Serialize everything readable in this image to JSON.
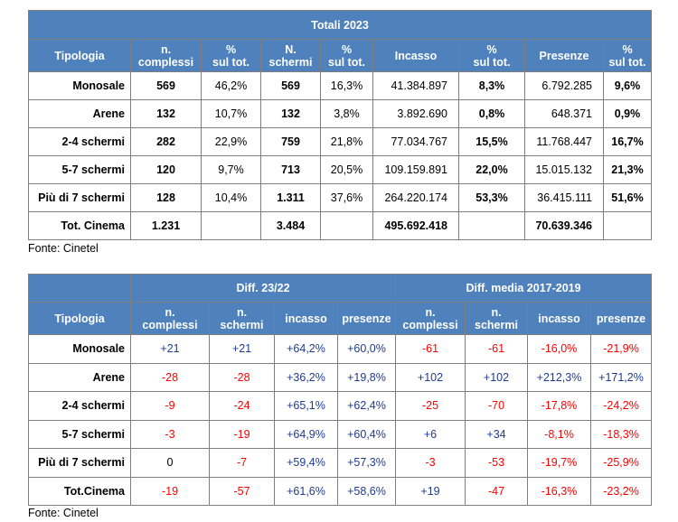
{
  "table1": {
    "title": "Totali 2023",
    "headers": [
      "Tipologia",
      "n.\ncomplessi",
      "%\nsul tot.",
      "N.\nschermi",
      "%\nsul tot.",
      "Incasso",
      "%\nsul tot.",
      "Presenze",
      "%\nsul tot."
    ],
    "rows": [
      [
        "Monosale",
        "569",
        "46,2%",
        "569",
        "16,3%",
        "41.384.897",
        "8,3%",
        "6.792.285",
        "9,6%"
      ],
      [
        "Arene",
        "132",
        "10,7%",
        "132",
        "3,8%",
        "3.892.690",
        "0,8%",
        "648.371",
        "0,9%"
      ],
      [
        "2-4 schermi",
        "282",
        "22,9%",
        "759",
        "21,8%",
        "77.034.767",
        "15,5%",
        "11.768.447",
        "16,7%"
      ],
      [
        "5-7 schermi",
        "120",
        "9,7%",
        "713",
        "20,5%",
        "109.159.891",
        "22,0%",
        "15.015.132",
        "21,3%"
      ],
      [
        "Più di 7 schermi",
        "128",
        "10,4%",
        "1.311",
        "37,6%",
        "264.220.174",
        "53,3%",
        "36.415.111",
        "51,6%"
      ],
      [
        "Tot. Cinema",
        "1.231",
        "",
        "3.484",
        "",
        "495.692.418",
        "",
        "70.639.346",
        ""
      ]
    ],
    "source": "Fonte: Cinetel"
  },
  "table2": {
    "group1": "Diff. 23/22",
    "group2": "Diff. media 2017-2019",
    "headers": [
      "Tipologia",
      "n.\ncomplessi",
      "n.\nschermi",
      "incasso",
      "presenze",
      "n.\ncomplessi",
      "n.\nschermi",
      "incasso",
      "presenze"
    ],
    "rows": [
      [
        "Monosale",
        "+21",
        "+21",
        "+64,2%",
        "+60,0%",
        "-61",
        "-61",
        "-16,0%",
        "-21,9%"
      ],
      [
        "Arene",
        "-28",
        "-28",
        "+36,2%",
        "+19,8%",
        "+102",
        "+102",
        "+212,3%",
        "+171,2%"
      ],
      [
        "2-4 schermi",
        "-9",
        "-24",
        "+65,1%",
        "+62,4%",
        "-25",
        "-70",
        "-17,8%",
        "-24,2%"
      ],
      [
        "5-7 schermi",
        "-3",
        "-19",
        "+64,9%",
        "+60,4%",
        "+6",
        "+34",
        "-8,1%",
        "-18,3%"
      ],
      [
        "Più di 7 schermi",
        "0",
        "-7",
        "+59,4%",
        "+57,3%",
        "-3",
        "-53",
        "-19,7%",
        "-25,9%"
      ],
      [
        "Tot.Cinema",
        "-19",
        "-57",
        "+61,6%",
        "+58,6%",
        "+19",
        "-47",
        "-16,3%",
        "-23,2%"
      ]
    ],
    "source": "Fonte: Cinetel"
  },
  "colors": {
    "header_bg": "#4f81bd",
    "positive": "#1f3a93",
    "negative": "#ff0000"
  }
}
